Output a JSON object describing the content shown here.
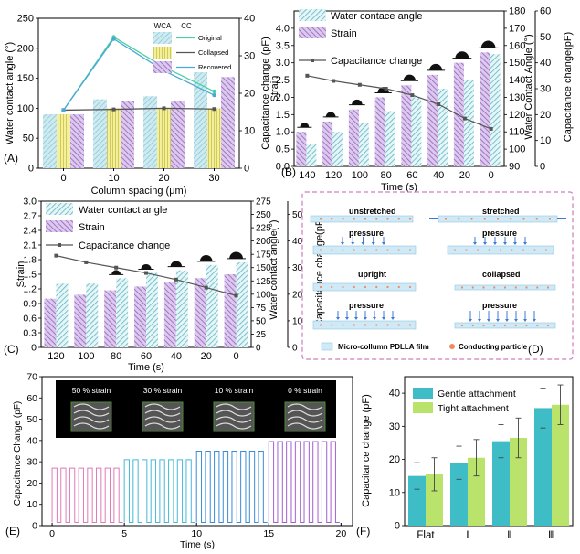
{
  "colors": {
    "hatch_teal": "#6fc3c9",
    "hatch_purple": "#a883c9",
    "teal_bar": "#3fbdc6",
    "green_bar": "#b9e36a",
    "wca_bar": "#a8dbe0",
    "yellow_bar": "#eee87c",
    "green_line": "#47d2a1",
    "blue_line": "#4ba7d6",
    "gray_line": "#555555",
    "pink_e": "#e07ab8",
    "cyan_e": "#46b9d6",
    "blue_e": "#3b8cd6",
    "purple_e": "#a35fd0",
    "dash_border": "#cc7fbf"
  },
  "panels": {
    "A": {
      "label": "(A)"
    },
    "B": {
      "label": "(B)"
    },
    "C": {
      "label": "(C)"
    },
    "D": {
      "label": "(D)"
    },
    "E": {
      "label": "(E)"
    },
    "F": {
      "label": "(F)"
    }
  },
  "diagram_d": {
    "unstretched": "unstretched",
    "stretched": "stretched",
    "pressure": "pressure",
    "upright": "upright",
    "collapsed": "collapsed",
    "legend_film": "Micro-collumn PDLLA film",
    "legend_particle": "Conducting particle"
  },
  "panel_e": {
    "strain_labels": [
      "50 % strain",
      "30 % strain",
      "10 % strain",
      "0 % strain"
    ]
  },
  "chart_data": [
    {
      "panel": "A",
      "type": "bar",
      "xlabel": "Column spacing (μm)",
      "ylabel": "Water contact angle (°)",
      "y2label": "Capacitance change (pF)",
      "categories": [
        "0",
        "10",
        "20",
        "30"
      ],
      "ylim": [
        0,
        250
      ],
      "y2lim": [
        0,
        40
      ],
      "yticks": [
        "0",
        "50",
        "100",
        "150",
        "200",
        "250"
      ],
      "y2ticks": [
        "0",
        "10",
        "20",
        "30",
        "40"
      ],
      "legend_headers": [
        "WCA",
        "CC"
      ],
      "series": [
        {
          "name": "Original",
          "axis": "left",
          "kind": "bar",
          "values": [
            90,
            115,
            120,
            160
          ]
        },
        {
          "name": "Collapsed",
          "axis": "left",
          "kind": "bar",
          "values": [
            90,
            100,
            100,
            100
          ]
        },
        {
          "name": "Recovered",
          "axis": "left",
          "kind": "bar",
          "values": [
            90,
            112,
            112,
            152
          ]
        },
        {
          "name": "Original",
          "axis": "right",
          "kind": "line",
          "values": [
            15.5,
            35,
            27,
            20.5
          ]
        },
        {
          "name": "Collapsed",
          "axis": "right",
          "kind": "line",
          "values": [
            15.5,
            15.7,
            16,
            15.8
          ]
        },
        {
          "name": "Recovered",
          "axis": "right",
          "kind": "line",
          "values": [
            15.5,
            34.5,
            26,
            19.5
          ]
        }
      ]
    },
    {
      "panel": "B",
      "type": "bar",
      "xlabel": "Time (s)",
      "ylabel": "Strain",
      "y2label": "Water Contact Angle (°)",
      "y3label": "Capacitance change(pF)",
      "categories": [
        "140",
        "120",
        "100",
        "80",
        "60",
        "40",
        "20",
        "0"
      ],
      "ylim": [
        0,
        4.5
      ],
      "y2lim": [
        90,
        180
      ],
      "y3lim": [
        0,
        60
      ],
      "yticks": [
        "0.0",
        "0.5",
        "1.0",
        "1.5",
        "2.0",
        "2.5",
        "3.0",
        "3.5",
        "4.0"
      ],
      "y2ticks": [
        "90",
        "100",
        "110",
        "120",
        "130",
        "140",
        "150",
        "160",
        "170",
        "180"
      ],
      "y3ticks": [
        "0",
        "10",
        "20",
        "30",
        "40",
        "50",
        "60"
      ],
      "series": [
        {
          "name": "Water contace angle",
          "axis": "y2",
          "kind": "bar",
          "values": [
            103,
            110,
            115,
            122,
            130,
            135,
            140,
            155
          ]
        },
        {
          "name": "Strain",
          "axis": "left",
          "kind": "bar",
          "values": [
            1.0,
            1.3,
            1.65,
            2.0,
            2.35,
            2.65,
            3.0,
            3.3
          ]
        },
        {
          "name": "Capacitance change",
          "axis": "y3",
          "kind": "line",
          "values": [
            35,
            33,
            31.5,
            30,
            27.5,
            24,
            18.5,
            14.5
          ]
        }
      ]
    },
    {
      "panel": "C",
      "type": "bar",
      "xlabel": "Time (s)",
      "ylabel": "Strain",
      "y2label": "Water contact angle(°)",
      "y3label": "Capacitance change(pF)",
      "categories": [
        "120",
        "100",
        "80",
        "60",
        "40",
        "20",
        "0"
      ],
      "ylim": [
        0,
        3.0
      ],
      "y2lim": [
        0,
        275
      ],
      "y3lim": [
        0,
        55
      ],
      "yticks": [
        "0",
        "0.3",
        "0.6",
        "0.9",
        "1.2",
        "1.5",
        "1.8",
        "2.1",
        "2.4",
        "2.7",
        "3.0"
      ],
      "y2ticks": [
        "0",
        "25",
        "50",
        "75",
        "100",
        "125",
        "150",
        "175",
        "200",
        "225",
        "250",
        "275"
      ],
      "y3ticks": [
        "0",
        "10",
        "20",
        "30",
        "40",
        "50"
      ],
      "series": [
        {
          "name": "Water contact angle",
          "axis": "y2",
          "kind": "bar",
          "values": [
            120,
            120,
            130,
            140,
            145,
            155,
            160
          ]
        },
        {
          "name": "Strain",
          "axis": "left",
          "kind": "bar",
          "values": [
            1.0,
            1.08,
            1.17,
            1.25,
            1.33,
            1.42,
            1.5
          ]
        },
        {
          "name": "Capacitance change",
          "axis": "y3",
          "kind": "line",
          "values": [
            34.5,
            32,
            30,
            28,
            25.5,
            22.5,
            19.5
          ]
        }
      ]
    },
    {
      "panel": "E",
      "type": "line",
      "xlabel": "Time (s)",
      "ylabel": "Capacitance Change (pF)",
      "xlim": [
        -0.7,
        20.8
      ],
      "ylim": [
        0,
        70
      ],
      "xticks": [
        "0",
        "5",
        "10",
        "15",
        "20"
      ],
      "yticks": [
        "0",
        "10",
        "20",
        "30",
        "40",
        "50",
        "60",
        "70"
      ],
      "series": [
        {
          "name": "50 % strain",
          "x_range": [
            0,
            4.9
          ],
          "low": 1.5,
          "high": 27
        },
        {
          "name": "30 % strain",
          "x_range": [
            5,
            9.9
          ],
          "low": 1.5,
          "high": 31
        },
        {
          "name": "10 % strain",
          "x_range": [
            10,
            14.9
          ],
          "low": 1.5,
          "high": 35
        },
        {
          "name": "0 % strain",
          "x_range": [
            15,
            19.9
          ],
          "low": 1.5,
          "high": 39.5
        }
      ]
    },
    {
      "panel": "F",
      "type": "bar",
      "xlabel": "",
      "ylabel": "Capacitance change (pF)",
      "categories": [
        "Flat",
        "Ⅰ",
        "Ⅱ",
        "Ⅲ"
      ],
      "ylim": [
        0,
        45
      ],
      "yticks": [
        "0",
        "10",
        "20",
        "30",
        "40"
      ],
      "series": [
        {
          "name": "Gentle attachment",
          "values": [
            15,
            19,
            25.5,
            35.5
          ],
          "err": [
            4,
            5,
            5,
            6
          ]
        },
        {
          "name": "Tight attachment",
          "values": [
            15.5,
            20.5,
            26.5,
            36.5
          ],
          "err": [
            5,
            5.5,
            6,
            6
          ]
        }
      ]
    }
  ]
}
